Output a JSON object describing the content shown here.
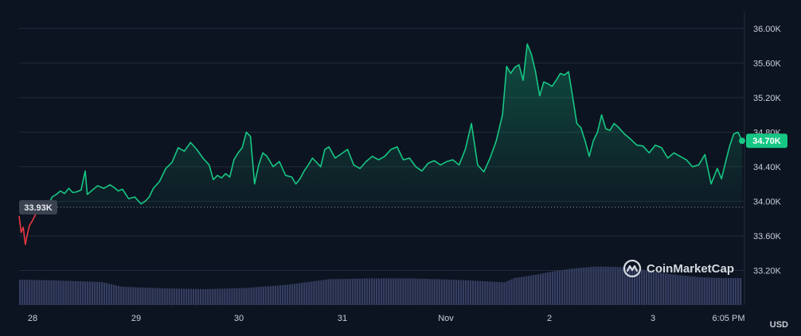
{
  "currency_label": "USD",
  "watermark": {
    "text": "CoinMarketCap",
    "icon": "coinmarketcap-logo-icon"
  },
  "chart_data": {
    "type": "area",
    "x_tick_labels": [
      "28",
      "29",
      "30",
      "31",
      "Nov",
      "2",
      "3",
      "6:05 PM"
    ],
    "y_ticks": [
      33200,
      33600,
      34000,
      34400,
      34800,
      35200,
      35600,
      36000
    ],
    "y_tick_labels": [
      "33.20K",
      "33.60K",
      "34.00K",
      "34.40K",
      "34.80K",
      "35.20K",
      "35.60K",
      "36.00K"
    ],
    "ylim": [
      32800,
      36200
    ],
    "xlim": [
      0,
      7
    ],
    "baseline": {
      "value": 33930,
      "label": "33.93K"
    },
    "current": {
      "value": 34700,
      "label": "34.70K"
    },
    "colors": {
      "up": "#16c784",
      "down": "#ea3943",
      "volume": "#363f63",
      "current_badge": "#16c784",
      "baseline_badge": "#3a4250"
    },
    "price": {
      "x": [
        0,
        0.02,
        0.04,
        0.06,
        0.08,
        0.1,
        0.13,
        0.16,
        0.2,
        0.24,
        0.28,
        0.32,
        0.36,
        0.4,
        0.44,
        0.48,
        0.52,
        0.56,
        0.6,
        0.64,
        0.66,
        0.7,
        0.76,
        0.82,
        0.88,
        0.92,
        0.96,
        1.0,
        1.06,
        1.12,
        1.18,
        1.22,
        1.26,
        1.3,
        1.36,
        1.42,
        1.48,
        1.54,
        1.6,
        1.66,
        1.72,
        1.78,
        1.84,
        1.88,
        1.92,
        1.96,
        2.0,
        2.04,
        2.08,
        2.12,
        2.16,
        2.2,
        2.24,
        2.28,
        2.32,
        2.36,
        2.4,
        2.46,
        2.52,
        2.58,
        2.64,
        2.68,
        2.72,
        2.76,
        2.8,
        2.84,
        2.88,
        2.92,
        2.96,
        3.0,
        3.06,
        3.12,
        3.18,
        3.24,
        3.3,
        3.36,
        3.42,
        3.48,
        3.54,
        3.6,
        3.66,
        3.72,
        3.78,
        3.84,
        3.9,
        3.96,
        4.02,
        4.08,
        4.14,
        4.2,
        4.26,
        4.32,
        4.38,
        4.44,
        4.5,
        4.56,
        4.62,
        4.68,
        4.72,
        4.76,
        4.8,
        4.84,
        4.88,
        4.92,
        4.96,
        5.0,
        5.04,
        5.08,
        5.12,
        5.16,
        5.2,
        5.24,
        5.28,
        5.32,
        5.36,
        5.4,
        5.44,
        5.48,
        5.52,
        5.56,
        5.6,
        5.64,
        5.68,
        5.72,
        5.76,
        5.8,
        5.86,
        5.92,
        5.98,
        6.04,
        6.1,
        6.16,
        6.22,
        6.28,
        6.34,
        6.4,
        6.46,
        6.52,
        6.58,
        6.64,
        6.7,
        6.76,
        6.8,
        6.84,
        6.88,
        6.92,
        6.96,
        7.0
      ],
      "y": [
        33830,
        33640,
        33700,
        33500,
        33620,
        33720,
        33780,
        33850,
        33930,
        33900,
        33950,
        34050,
        34080,
        34120,
        34090,
        34150,
        34100,
        34110,
        34130,
        34350,
        34080,
        34120,
        34180,
        34150,
        34190,
        34160,
        34120,
        34140,
        34030,
        34050,
        33970,
        34000,
        34050,
        34150,
        34230,
        34380,
        34450,
        34620,
        34580,
        34680,
        34600,
        34500,
        34420,
        34250,
        34300,
        34270,
        34320,
        34280,
        34480,
        34560,
        34620,
        34800,
        34750,
        34200,
        34420,
        34560,
        34520,
        34400,
        34460,
        34300,
        34280,
        34200,
        34260,
        34350,
        34420,
        34500,
        34450,
        34400,
        34600,
        34630,
        34500,
        34550,
        34600,
        34420,
        34380,
        34460,
        34520,
        34480,
        34520,
        34600,
        34630,
        34480,
        34500,
        34400,
        34350,
        34440,
        34470,
        34420,
        34460,
        34480,
        34420,
        34600,
        34900,
        34420,
        34340,
        34500,
        34700,
        35000,
        35560,
        35480,
        35550,
        35580,
        35400,
        35820,
        35700,
        35500,
        35220,
        35380,
        35360,
        35330,
        35400,
        35480,
        35460,
        35500,
        35200,
        34900,
        34850,
        34700,
        34520,
        34700,
        34800,
        35000,
        34840,
        34820,
        34900,
        34860,
        34780,
        34720,
        34650,
        34640,
        34560,
        34650,
        34620,
        34500,
        34560,
        34520,
        34480,
        34400,
        34420,
        34540,
        34200,
        34380,
        34260,
        34450,
        34640,
        34780,
        34800,
        34700
      ]
    },
    "volume": {
      "x": [
        0,
        0.35,
        0.8,
        1.0,
        1.4,
        1.8,
        2.2,
        2.6,
        3.0,
        3.4,
        3.8,
        4.2,
        4.5,
        4.7,
        4.8,
        5.0,
        5.2,
        5.4,
        5.6,
        5.8,
        6.0,
        6.2,
        6.4,
        6.6,
        6.8,
        7.0
      ],
      "v": [
        0.64,
        0.62,
        0.58,
        0.46,
        0.42,
        0.4,
        0.43,
        0.51,
        0.65,
        0.67,
        0.67,
        0.64,
        0.6,
        0.57,
        0.68,
        0.76,
        0.86,
        0.93,
        0.97,
        0.96,
        0.91,
        0.82,
        0.75,
        0.7,
        0.68,
        0.68
      ]
    }
  }
}
